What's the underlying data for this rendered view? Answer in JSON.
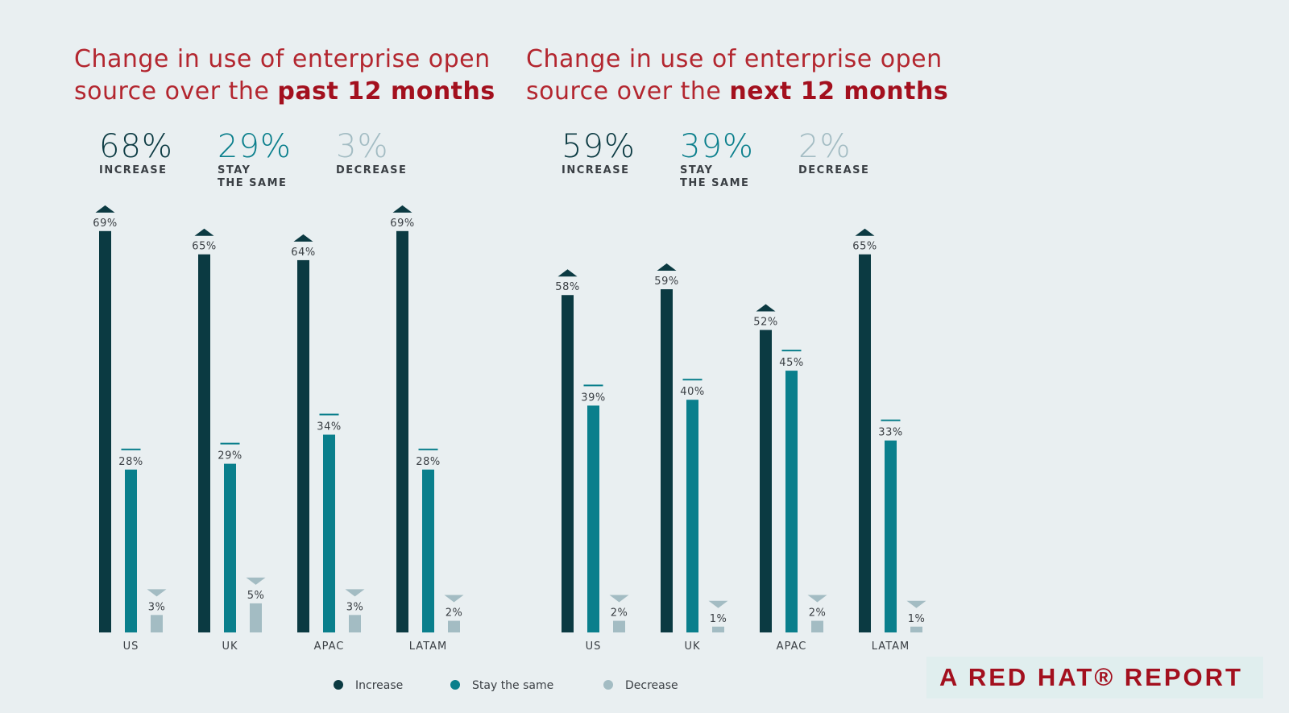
{
  "colors": {
    "increase": "#0b3a42",
    "stay": "#0a7f8c",
    "decrease": "#a3bcc3",
    "title": "#a3101e"
  },
  "legend": [
    "Increase",
    "Stay the same",
    "Decrease"
  ],
  "footer": "A RED HAT® REPORT",
  "chart_data": [
    {
      "type": "bar",
      "title_prefix": "Change in use of enterprise open source over the",
      "title_bold": "past 12 months",
      "summary": [
        {
          "value": "68%",
          "label": "INCREASE"
        },
        {
          "value": "29%",
          "label": "STAY\nTHE SAME"
        },
        {
          "value": "3%",
          "label": "DECREASE"
        }
      ],
      "categories": [
        "US",
        "UK",
        "APAC",
        "LATAM"
      ],
      "series": [
        {
          "name": "Increase",
          "values": [
            69,
            65,
            64,
            69
          ]
        },
        {
          "name": "Stay the same",
          "values": [
            28,
            29,
            34,
            28
          ]
        },
        {
          "name": "Decrease",
          "values": [
            3,
            5,
            3,
            2
          ]
        }
      ],
      "ylim": [
        0,
        70
      ]
    },
    {
      "type": "bar",
      "title_prefix": "Change in use of enterprise open source over the",
      "title_bold": "next 12 months",
      "summary": [
        {
          "value": "59%",
          "label": "INCREASE"
        },
        {
          "value": "39%",
          "label": "STAY\nTHE SAME"
        },
        {
          "value": "2%",
          "label": "DECREASE"
        }
      ],
      "categories": [
        "US",
        "UK",
        "APAC",
        "LATAM"
      ],
      "series": [
        {
          "name": "Increase",
          "values": [
            58,
            59,
            52,
            65
          ]
        },
        {
          "name": "Stay the same",
          "values": [
            39,
            40,
            45,
            33
          ]
        },
        {
          "name": "Decrease",
          "values": [
            2,
            1,
            2,
            1
          ]
        }
      ],
      "ylim": [
        0,
        70
      ]
    }
  ]
}
